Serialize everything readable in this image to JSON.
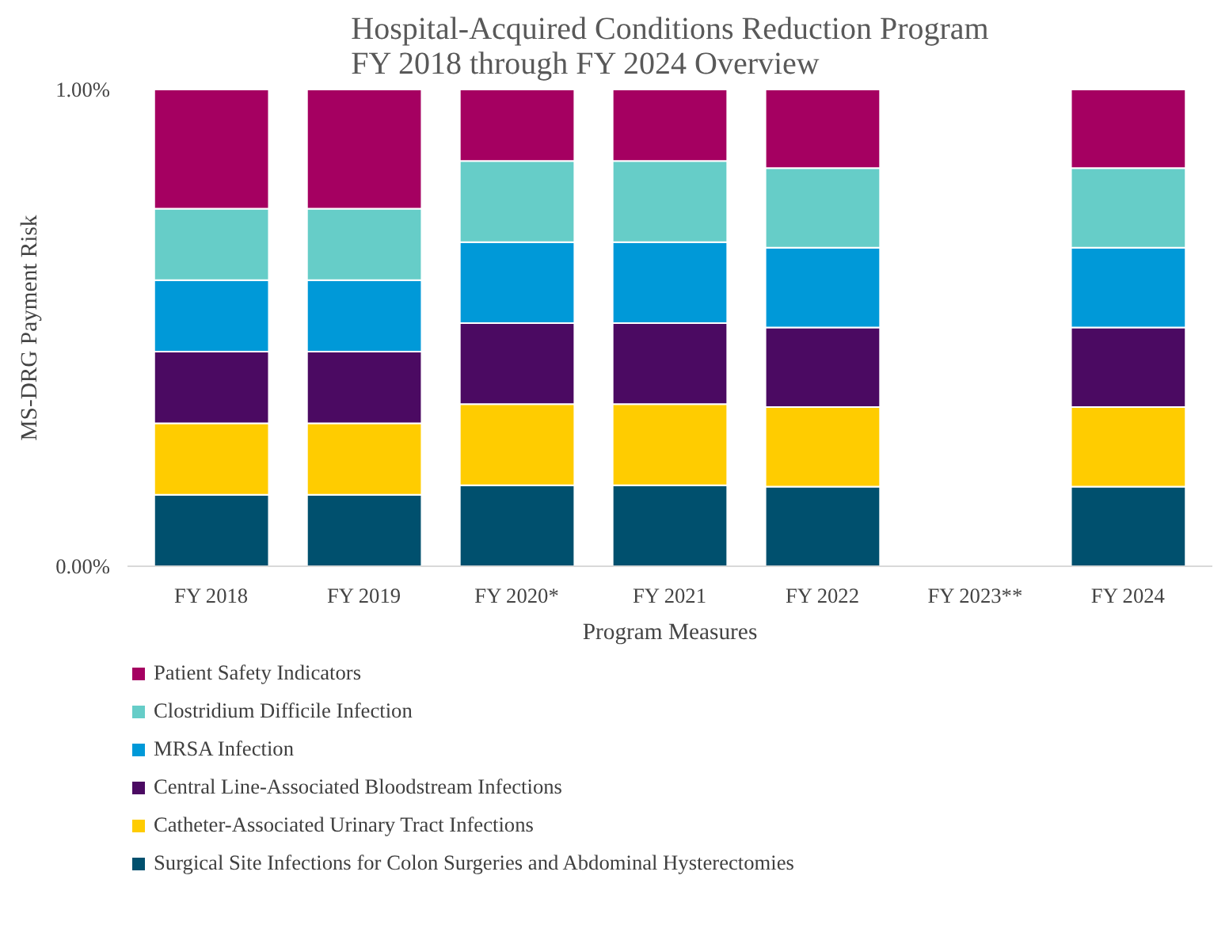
{
  "chart_data": {
    "type": "bar",
    "stacked": true,
    "title": "Hospital-Acquired Conditions Reduction Program\nFY 2018 through FY 2024 Overview",
    "xlabel": "Program Measures",
    "ylabel": "MS-DRG Payment Risk",
    "categories": [
      "FY 2018",
      "FY 2019",
      "FY 2020*",
      "FY 2021",
      "FY 2022",
      "FY 2023**",
      "FY 2024"
    ],
    "ylim": [
      0,
      1
    ],
    "yticks": [
      {
        "value": 0,
        "label": "0.00%"
      },
      {
        "value": 1,
        "label": "1.00%"
      }
    ],
    "grid": false,
    "legend": "bottom",
    "series": [
      {
        "name": "Surgical Site Infections for Colon Surgeries and Abdominal Hysterectomies",
        "color": "#00506e",
        "values": [
          0.15,
          0.15,
          0.17,
          0.17,
          0.167,
          null,
          0.167
        ]
      },
      {
        "name": "Catheter-Associated Urinary Tract Infections",
        "color": "#ffcc00",
        "values": [
          0.15,
          0.15,
          0.17,
          0.17,
          0.167,
          null,
          0.167
        ]
      },
      {
        "name": "Central Line-Associated Bloodstream Infections",
        "color": "#4b0a62",
        "values": [
          0.15,
          0.15,
          0.17,
          0.17,
          0.167,
          null,
          0.167
        ]
      },
      {
        "name": "MRSA Infection",
        "color": "#0099d8",
        "values": [
          0.15,
          0.15,
          0.17,
          0.17,
          0.167,
          null,
          0.167
        ]
      },
      {
        "name": "Clostridium Difficile Infection",
        "color": "#66cdc8",
        "values": [
          0.15,
          0.15,
          0.17,
          0.17,
          0.167,
          null,
          0.167
        ]
      },
      {
        "name": "Patient Safety Indicators",
        "color": "#a50061",
        "values": [
          0.25,
          0.25,
          0.15,
          0.15,
          0.165,
          null,
          0.165
        ]
      }
    ]
  }
}
